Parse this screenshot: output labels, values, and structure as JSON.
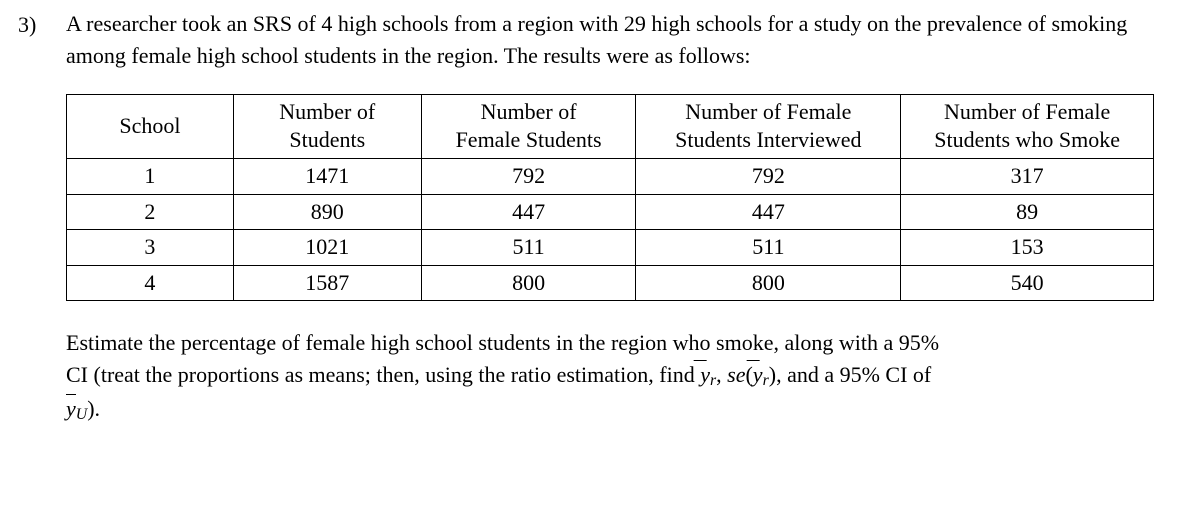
{
  "question": {
    "number": "3)",
    "intro_text": "A researcher took an SRS of 4 high schools from a region with 29 high schools for a study on the prevalence of smoking among female high school students in the region. The results were as follows:"
  },
  "table": {
    "columns": [
      "School",
      "Number of\nStudents",
      "Number of\nFemale Students",
      "Number of Female\nStudents Interviewed",
      "Number of Female\nStudents who Smoke"
    ],
    "rows": [
      [
        "1",
        "1471",
        "792",
        "792",
        "317"
      ],
      [
        "2",
        "890",
        "447",
        "447",
        "89"
      ],
      [
        "3",
        "1021",
        "511",
        "511",
        "153"
      ],
      [
        "4",
        "1587",
        "800",
        "800",
        "540"
      ]
    ]
  },
  "footer": {
    "line1_part1": "Estimate the percentage of female high school students in the region who smoke, along with a 95%",
    "line2_lead": "CI (treat the proportions as means; then, using the ratio estimation, find ",
    "comma_sep": ", ",
    "se_label": "se",
    "and_text": ", and a 95% CI of",
    "closing": ")."
  },
  "symbols": {
    "y": "y",
    "r": "r",
    "U": "U"
  }
}
